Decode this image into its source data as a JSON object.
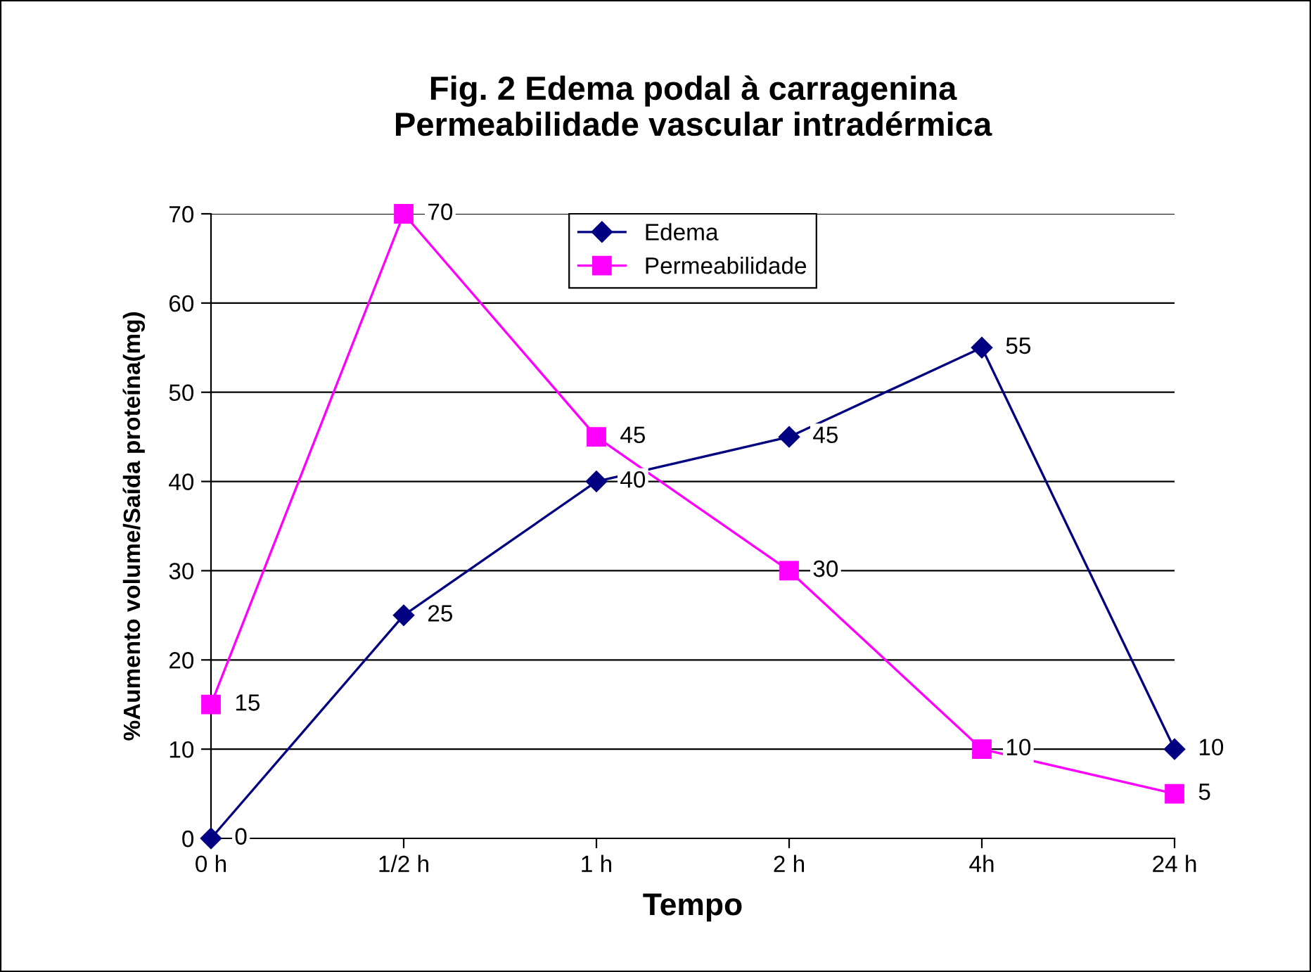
{
  "chart_data": {
    "type": "line",
    "title": "Fig. 2 Edema podal à carragenina\nPermeabilidade vascular intradérmica",
    "xlabel": "Tempo",
    "ylabel": "%Aumento volume/Saída proteína(mg)",
    "categories": [
      "0 h",
      "1/2 h",
      "1 h",
      "2 h",
      "4h",
      "24 h"
    ],
    "series": [
      {
        "name": "Edema",
        "color": "#000080",
        "marker": "diamond",
        "values": [
          0,
          25,
          40,
          45,
          55,
          10
        ]
      },
      {
        "name": "Permeabilidade",
        "color": "#ff00ff",
        "marker": "square",
        "values": [
          15,
          70,
          45,
          30,
          10,
          5
        ]
      }
    ],
    "ylim": [
      0,
      70
    ],
    "yticks": [
      0,
      10,
      20,
      30,
      40,
      50,
      60,
      70
    ],
    "grid": "y",
    "legend": "top",
    "data_labels": true,
    "line_style": "solid"
  }
}
